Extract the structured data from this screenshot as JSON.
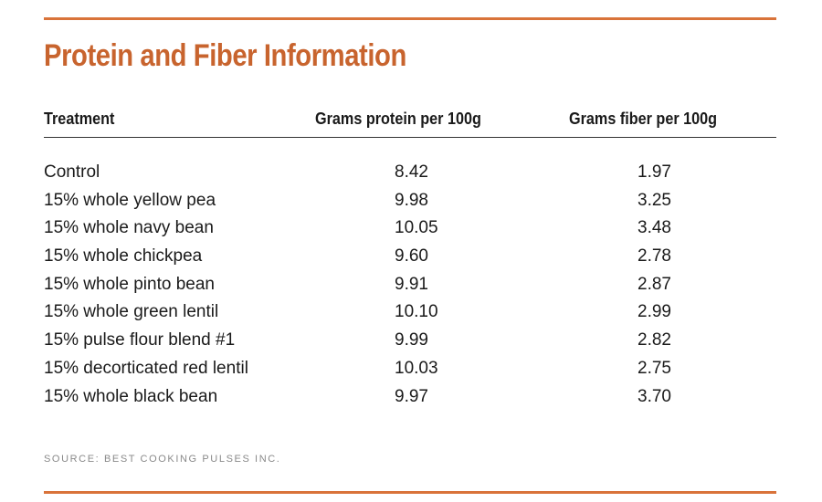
{
  "title": "Protein and Fiber Information",
  "columns": {
    "treatment": "Treatment",
    "protein": "Grams protein per 100g",
    "fiber": "Grams fiber per 100g"
  },
  "rows": [
    {
      "treatment": "Control",
      "protein": "8.42",
      "fiber": "1.97"
    },
    {
      "treatment": "15% whole yellow pea",
      "protein": "9.98",
      "fiber": "3.25"
    },
    {
      "treatment": "15% whole navy bean",
      "protein": "10.05",
      "fiber": "3.48"
    },
    {
      "treatment": "15% whole chickpea",
      "protein": "9.60",
      "fiber": "2.78"
    },
    {
      "treatment": "15% whole pinto bean",
      "protein": "9.91",
      "fiber": "2.87"
    },
    {
      "treatment": "15% whole green lentil",
      "protein": "10.10",
      "fiber": "2.99"
    },
    {
      "treatment": "15% pulse flour blend #1",
      "protein": "9.99",
      "fiber": "2.82"
    },
    {
      "treatment": "15% decorticated red lentil",
      "protein": "10.03",
      "fiber": "2.75"
    },
    {
      "treatment": "15% whole black bean",
      "protein": "9.97",
      "fiber": "3.70"
    }
  ],
  "source": "SOURCE: BEST COOKING PULSES INC.",
  "colors": {
    "accent": "#d9733a",
    "title": "#c8642e",
    "text": "#1a1a1a",
    "source": "#8a8a8a"
  }
}
